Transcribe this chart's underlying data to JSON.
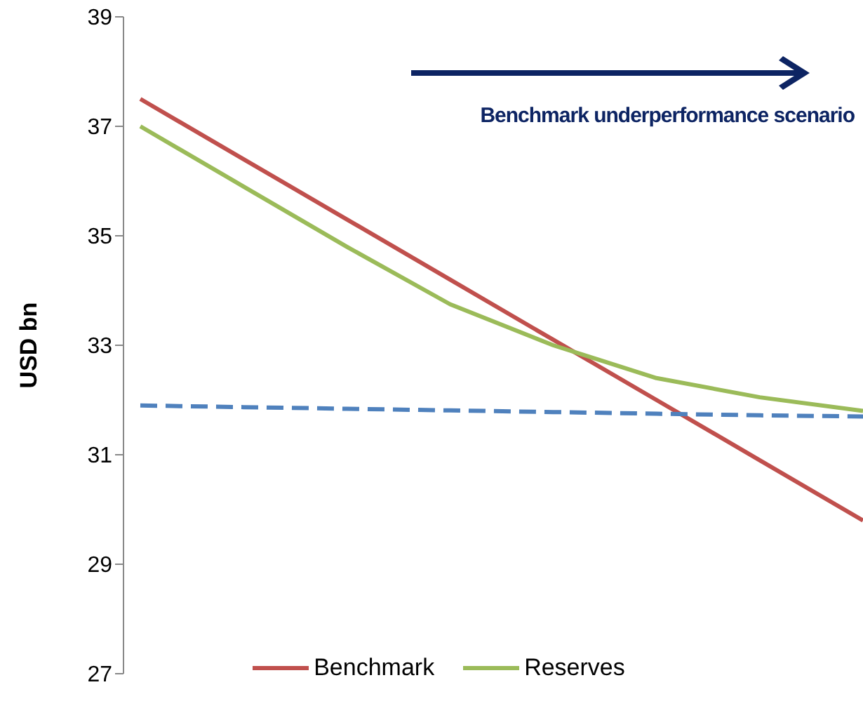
{
  "chart_data": {
    "type": "line",
    "ylabel": "USD bn",
    "categories": [
      null,
      null,
      null,
      null,
      null,
      null,
      null,
      null
    ],
    "series": [
      {
        "name": "Benchmark",
        "color": "#c0504d",
        "values": [
          37.5,
          36.4,
          35.3,
          34.2,
          33.1,
          32.0,
          30.9,
          29.8
        ]
      },
      {
        "name": "Reserves",
        "color": "#9bbb59",
        "values": [
          37.0,
          35.9,
          34.8,
          33.75,
          33.0,
          32.4,
          32.05,
          31.8
        ]
      },
      {
        "color": "#4f81bd",
        "line_style": "dashed",
        "values": [
          31.9,
          31.87,
          31.84,
          31.81,
          31.78,
          31.75,
          31.72,
          31.7
        ]
      }
    ],
    "ylim": [
      27,
      39
    ],
    "yticks": [
      27,
      29,
      31,
      33,
      35,
      37,
      39
    ],
    "grid": false,
    "legend": "bottom",
    "tick_labels": "y",
    "marker": "none",
    "annotations": [
      "Benchmark underperformance scenario"
    ]
  }
}
